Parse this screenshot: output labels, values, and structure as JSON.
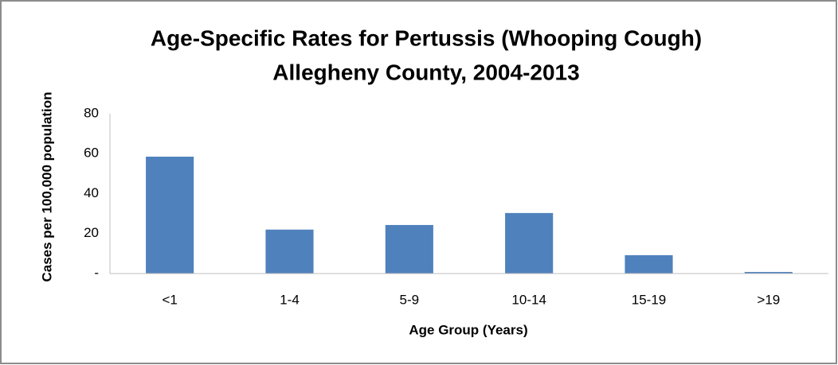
{
  "chart_data": {
    "type": "bar",
    "title": [
      "Age-Specific Rates for Pertussis (Whooping Cough)",
      "Allegheny County, 2004-2013"
    ],
    "x_label": "Age Group  (Years)",
    "y_label": "Cases per 100,000 population",
    "categories": [
      "<1",
      "1-4",
      "5-9",
      "10-14",
      "15-19",
      ">19"
    ],
    "values": [
      58.5,
      22,
      24.3,
      30.3,
      9.2,
      0.8
    ],
    "color": "#4f81bd",
    "ylim": [
      0,
      80
    ],
    "yticks": [
      {
        "value": 0,
        "label": "-"
      },
      20,
      40,
      60,
      80
    ],
    "grid": false
  }
}
